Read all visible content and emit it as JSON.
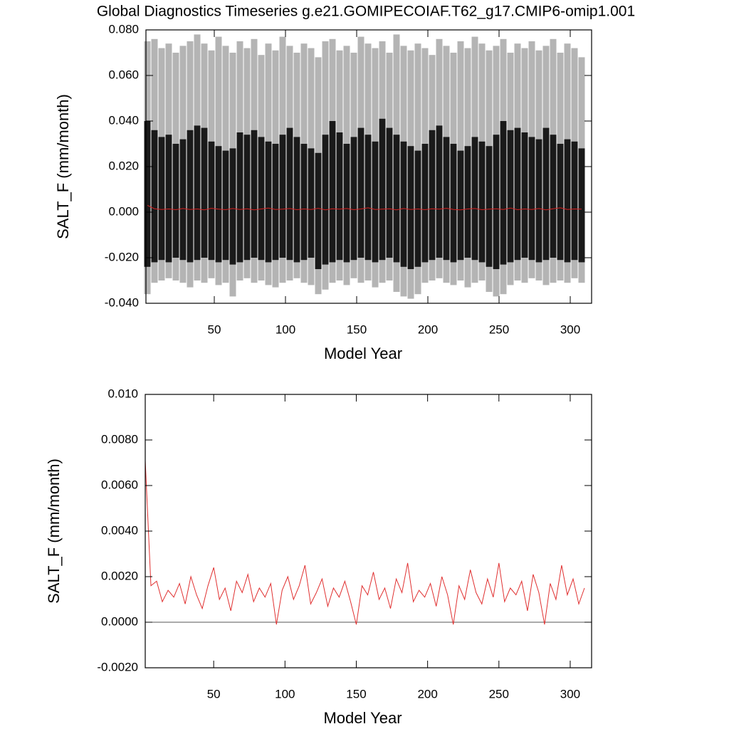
{
  "title": "Global Diagnostics Timeseries g.e21.GOMIPECOIAF.T62_g17.CMIP6-omip1.001",
  "chart_data": [
    {
      "type": "band-line",
      "xlabel": "Model Year",
      "ylabel": "SALT_F (mm/month)",
      "xlim": [
        2,
        315
      ],
      "xticks": [
        50,
        100,
        150,
        200,
        250,
        300
      ],
      "ylim": [
        -0.04,
        0.08
      ],
      "yticks": [
        {
          "value": -0.04,
          "label": "-0.040"
        },
        {
          "value": -0.02,
          "label": "-0.020"
        },
        {
          "value": 0,
          "label": "0.000"
        },
        {
          "value": 0.02,
          "label": "0.020"
        },
        {
          "value": 0.04,
          "label": "0.040"
        },
        {
          "value": 0.06,
          "label": "0.060"
        },
        {
          "value": 0.08,
          "label": "0.080"
        }
      ],
      "x": [
        3,
        8,
        13,
        18,
        23,
        28,
        33,
        38,
        43,
        48,
        53,
        58,
        63,
        68,
        73,
        78,
        83,
        88,
        93,
        98,
        103,
        108,
        113,
        118,
        123,
        128,
        133,
        138,
        143,
        148,
        153,
        158,
        163,
        168,
        173,
        178,
        183,
        188,
        193,
        198,
        203,
        208,
        213,
        218,
        223,
        228,
        233,
        238,
        243,
        248,
        253,
        258,
        263,
        268,
        273,
        278,
        283,
        288,
        293,
        298,
        303,
        308
      ],
      "bands": [
        {
          "color": "#b4b4b4",
          "high": [
            0.075,
            0.076,
            0.072,
            0.074,
            0.07,
            0.073,
            0.075,
            0.078,
            0.074,
            0.071,
            0.077,
            0.073,
            0.07,
            0.075,
            0.072,
            0.076,
            0.069,
            0.074,
            0.071,
            0.077,
            0.073,
            0.07,
            0.074,
            0.072,
            0.068,
            0.075,
            0.076,
            0.071,
            0.073,
            0.07,
            0.077,
            0.074,
            0.072,
            0.075,
            0.07,
            0.078,
            0.073,
            0.071,
            0.074,
            0.072,
            0.069,
            0.076,
            0.073,
            0.07,
            0.075,
            0.072,
            0.077,
            0.074,
            0.071,
            0.073,
            0.076,
            0.07,
            0.074,
            0.072,
            0.075,
            0.071,
            0.073,
            0.076,
            0.07,
            0.074,
            0.072,
            0.068
          ],
          "low": [
            -0.036,
            -0.031,
            -0.03,
            -0.029,
            -0.03,
            -0.031,
            -0.033,
            -0.03,
            -0.031,
            -0.029,
            -0.032,
            -0.031,
            -0.037,
            -0.03,
            -0.029,
            -0.031,
            -0.03,
            -0.032,
            -0.033,
            -0.031,
            -0.03,
            -0.029,
            -0.031,
            -0.032,
            -0.036,
            -0.034,
            -0.031,
            -0.03,
            -0.032,
            -0.029,
            -0.031,
            -0.03,
            -0.033,
            -0.031,
            -0.03,
            -0.035,
            -0.037,
            -0.038,
            -0.036,
            -0.031,
            -0.03,
            -0.029,
            -0.031,
            -0.032,
            -0.03,
            -0.033,
            -0.031,
            -0.03,
            -0.035,
            -0.037,
            -0.036,
            -0.032,
            -0.03,
            -0.031,
            -0.029,
            -0.03,
            -0.032,
            -0.031,
            -0.03,
            -0.031,
            -0.029,
            -0.031
          ]
        },
        {
          "color": "#1a1a1a",
          "high": [
            0.04,
            0.036,
            0.033,
            0.034,
            0.03,
            0.032,
            0.036,
            0.038,
            0.037,
            0.031,
            0.029,
            0.027,
            0.028,
            0.035,
            0.034,
            0.036,
            0.033,
            0.031,
            0.03,
            0.034,
            0.037,
            0.033,
            0.03,
            0.028,
            0.026,
            0.034,
            0.04,
            0.035,
            0.03,
            0.033,
            0.037,
            0.034,
            0.031,
            0.041,
            0.037,
            0.034,
            0.031,
            0.029,
            0.027,
            0.03,
            0.036,
            0.038,
            0.033,
            0.03,
            0.027,
            0.029,
            0.033,
            0.031,
            0.029,
            0.034,
            0.04,
            0.036,
            0.037,
            0.035,
            0.033,
            0.032,
            0.037,
            0.034,
            0.03,
            0.032,
            0.031,
            0.028
          ],
          "low": [
            -0.024,
            -0.022,
            -0.021,
            -0.022,
            -0.02,
            -0.021,
            -0.022,
            -0.021,
            -0.02,
            -0.021,
            -0.022,
            -0.021,
            -0.023,
            -0.022,
            -0.021,
            -0.02,
            -0.021,
            -0.022,
            -0.021,
            -0.02,
            -0.021,
            -0.022,
            -0.021,
            -0.02,
            -0.025,
            -0.023,
            -0.022,
            -0.021,
            -0.022,
            -0.021,
            -0.02,
            -0.021,
            -0.022,
            -0.021,
            -0.02,
            -0.022,
            -0.024,
            -0.025,
            -0.024,
            -0.022,
            -0.021,
            -0.02,
            -0.021,
            -0.022,
            -0.021,
            -0.02,
            -0.021,
            -0.022,
            -0.024,
            -0.025,
            -0.023,
            -0.022,
            -0.021,
            -0.02,
            -0.021,
            -0.022,
            -0.021,
            -0.02,
            -0.021,
            -0.022,
            -0.021,
            -0.022
          ]
        }
      ],
      "series": [
        {
          "color": "#d62020",
          "values": [
            0.003,
            0.0015,
            0.0012,
            0.0014,
            0.0011,
            0.0016,
            0.0012,
            0.0014,
            0.001,
            0.0017,
            0.0013,
            0.0011,
            0.0016,
            0.0012,
            0.0015,
            0.001,
            0.0014,
            0.0018,
            0.0012,
            0.0013,
            0.0016,
            0.0011,
            0.0014,
            0.0012,
            0.0017,
            0.001,
            0.0015,
            0.0013,
            0.0016,
            0.0011,
            0.0014,
            0.0019,
            0.0012,
            0.0013,
            0.0015,
            0.001,
            0.0016,
            0.0012,
            0.0014,
            0.0011,
            0.0015,
            0.0013,
            0.0017,
            0.0012,
            0.001,
            0.0014,
            0.0016,
            0.0011,
            0.0013,
            0.0015,
            0.0012,
            0.0018,
            0.0011,
            0.0014,
            0.0012,
            0.0016,
            0.001,
            0.0015,
            0.0019,
            0.0012,
            0.0014,
            0.0013
          ]
        }
      ]
    },
    {
      "type": "line",
      "xlabel": "Model Year",
      "ylabel": "SALT_F (mm/month)",
      "xlim": [
        2,
        315
      ],
      "xticks": [
        50,
        100,
        150,
        200,
        250,
        300
      ],
      "ylim": [
        -0.002,
        0.01
      ],
      "yticks": [
        {
          "value": -0.002,
          "label": "-0.0020"
        },
        {
          "value": 0,
          "label": "0.0000"
        },
        {
          "value": 0.002,
          "label": "0.0020"
        },
        {
          "value": 0.004,
          "label": "0.0040"
        },
        {
          "value": 0.006,
          "label": "0.0060"
        },
        {
          "value": 0.008,
          "label": "0.0080"
        },
        {
          "value": 0.01,
          "label": "0.010"
        }
      ],
      "hline": 0,
      "x": [
        2,
        6,
        10,
        14,
        18,
        22,
        26,
        30,
        34,
        38,
        42,
        46,
        50,
        54,
        58,
        62,
        66,
        70,
        74,
        78,
        82,
        86,
        90,
        94,
        98,
        102,
        106,
        110,
        114,
        118,
        122,
        126,
        130,
        134,
        138,
        142,
        146,
        150,
        154,
        158,
        162,
        166,
        170,
        174,
        178,
        182,
        186,
        190,
        194,
        198,
        202,
        206,
        210,
        214,
        218,
        222,
        226,
        230,
        234,
        238,
        242,
        246,
        250,
        254,
        258,
        262,
        266,
        270,
        274,
        278,
        282,
        286,
        290,
        294,
        298,
        302,
        306,
        310
      ],
      "series": [
        {
          "color": "#e03030",
          "values": [
            0.0071,
            0.0016,
            0.0018,
            0.0009,
            0.0014,
            0.0011,
            0.0017,
            0.0008,
            0.002,
            0.0012,
            0.0006,
            0.0016,
            0.0024,
            0.001,
            0.0015,
            0.0005,
            0.0018,
            0.0013,
            0.0021,
            0.0009,
            0.0015,
            0.0011,
            0.0017,
            -0.0001,
            0.0014,
            0.002,
            0.001,
            0.0016,
            0.0025,
            0.0008,
            0.0013,
            0.0019,
            0.0007,
            0.0015,
            0.0011,
            0.0018,
            0.0009,
            -0.0001,
            0.0016,
            0.0012,
            0.0022,
            0.001,
            0.0015,
            0.0006,
            0.0019,
            0.0013,
            0.0026,
            0.0009,
            0.0014,
            0.0011,
            0.0017,
            0.0007,
            0.002,
            0.0012,
            -0.0001,
            0.0016,
            0.001,
            0.0023,
            0.0013,
            0.0008,
            0.0019,
            0.0011,
            0.0026,
            0.0009,
            0.0015,
            0.0012,
            0.0018,
            0.0005,
            0.0021,
            0.0013,
            -0.0001,
            0.0017,
            0.001,
            0.0025,
            0.0012,
            0.0019,
            0.0008,
            0.0015
          ]
        }
      ]
    }
  ]
}
